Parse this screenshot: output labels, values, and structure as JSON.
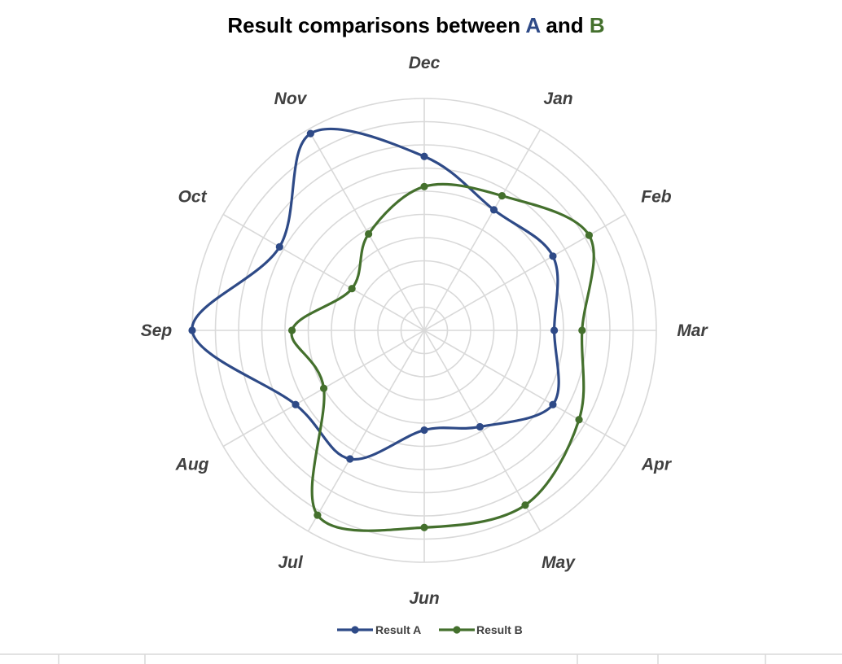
{
  "chart_data": {
    "type": "radar",
    "title": {
      "prefix": "Result comparisons between ",
      "a": "A",
      "middle": " and  ",
      "b": "B"
    },
    "categories": [
      "Dec",
      "Jan",
      "Feb",
      "Mar",
      "Apr",
      "May",
      "Jun",
      "Jul",
      "Aug",
      "Sep",
      "Oct",
      "Nov"
    ],
    "rmax": 10,
    "rings": 10,
    "series": [
      {
        "name": "Result A",
        "color": "#2e4a87",
        "values": [
          7.5,
          6.0,
          6.4,
          5.6,
          6.4,
          4.8,
          4.3,
          6.4,
          6.4,
          10.0,
          7.2,
          9.8
        ]
      },
      {
        "name": "Result B",
        "color": "#44702d",
        "values": [
          6.2,
          6.7,
          8.2,
          6.8,
          7.7,
          8.7,
          8.5,
          9.2,
          5.0,
          5.7,
          3.6,
          4.8
        ]
      }
    ],
    "grid": true,
    "legend": "bottom-center"
  }
}
